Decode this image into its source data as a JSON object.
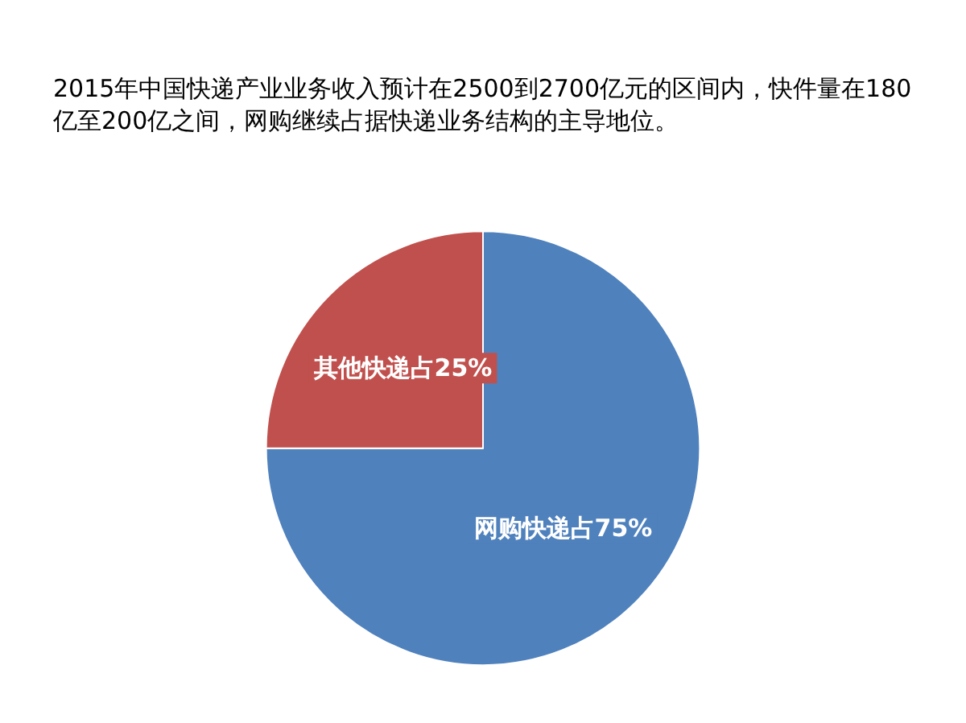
{
  "chart_data": {
    "type": "pie",
    "title": "2015年中国快递产业业务收入预计在2500到2700亿元的区间内，快件量在180亿至200亿之间，网购继续占据快递业务结构的主导地位。",
    "categories": [
      null,
      null
    ],
    "values": [
      75,
      25
    ],
    "value_labels": [
      "网购快递占75%",
      "其他快递占25%"
    ],
    "colors": [
      "#4f81bd",
      "#c0504d"
    ]
  }
}
